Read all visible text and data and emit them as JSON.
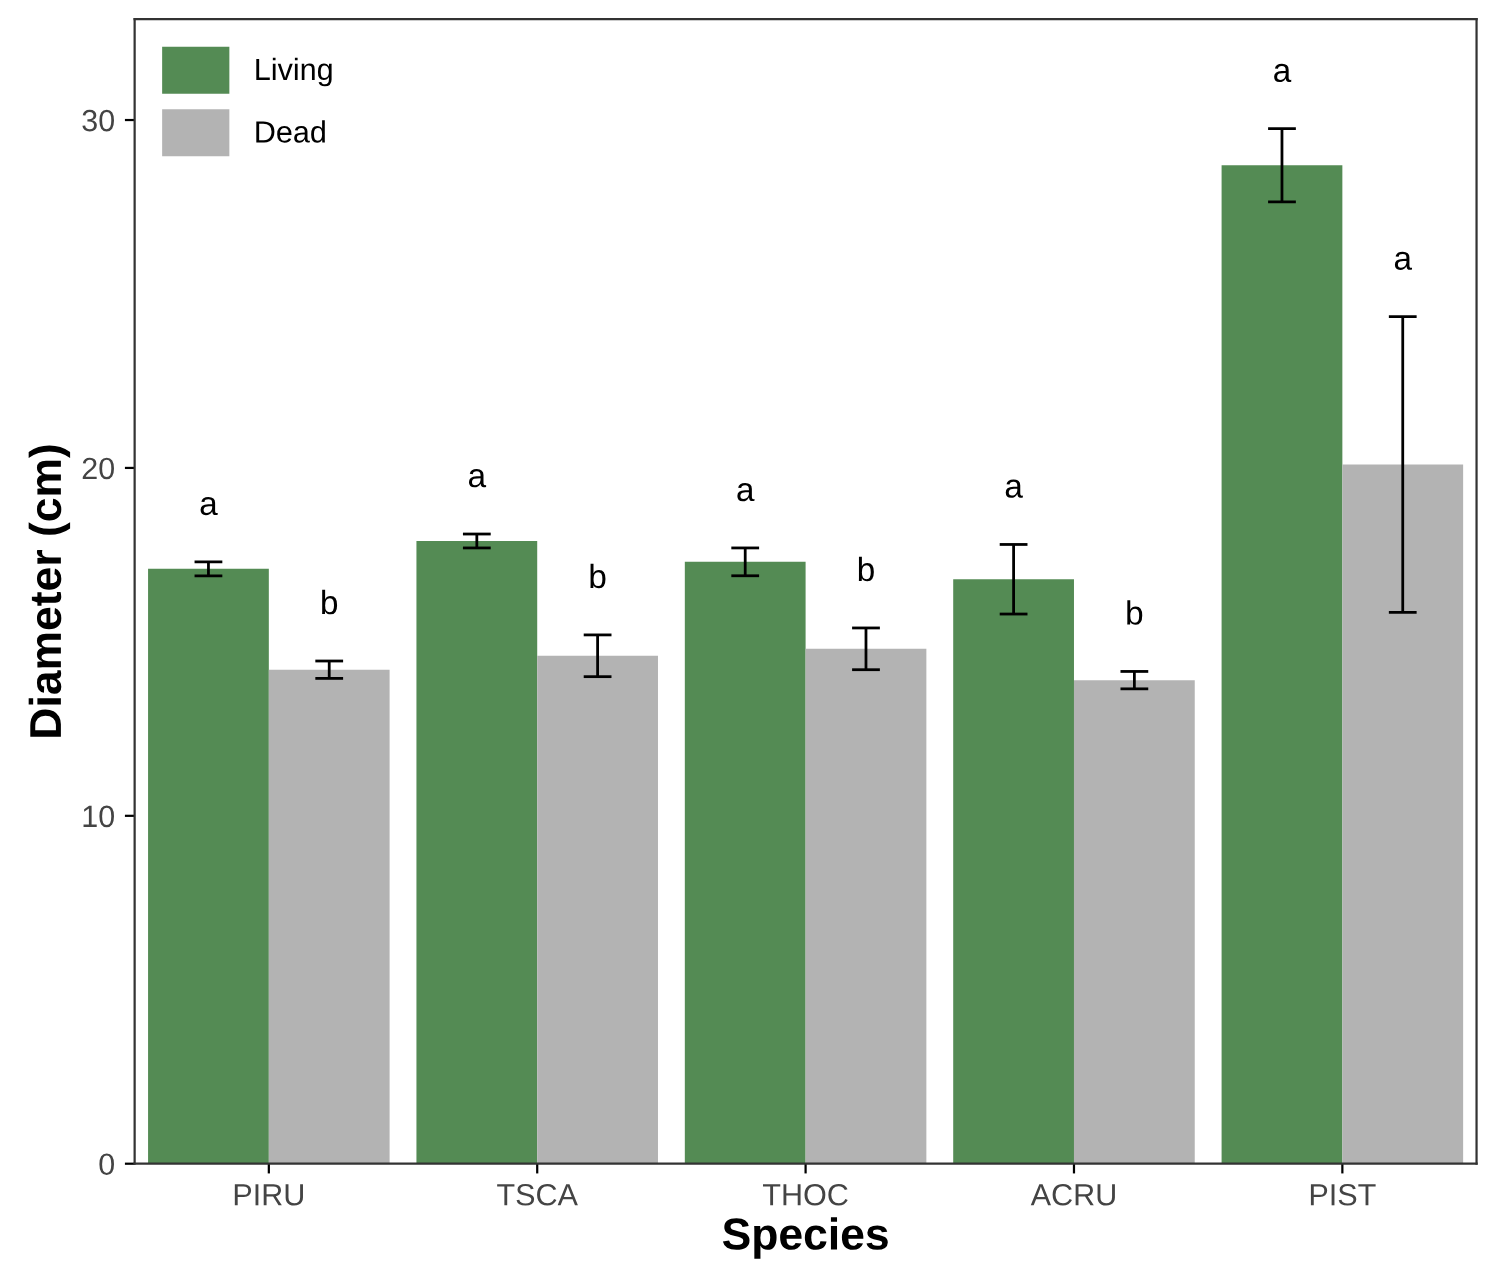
{
  "chart_data": {
    "type": "bar",
    "xlabel": "Species",
    "ylabel": "Diameter (cm)",
    "categories": [
      "PIRU",
      "TSCA",
      "THOC",
      "ACRU",
      "PIST"
    ],
    "series": [
      {
        "name": "Living",
        "color": "#548b54",
        "values": [
          17.1,
          17.9,
          17.3,
          16.8,
          28.7
        ],
        "errors": [
          0.2,
          0.2,
          0.4,
          1.0,
          1.05
        ]
      },
      {
        "name": "Dead",
        "color": "#b3b3b3",
        "values": [
          14.2,
          14.6,
          14.8,
          13.9,
          20.1
        ],
        "errors": [
          0.25,
          0.6,
          0.6,
          0.25,
          4.25
        ]
      }
    ],
    "annotations": [
      "a",
      "a",
      "a",
      "a",
      "a",
      "b",
      "b",
      "b",
      "b",
      "a"
    ],
    "ylim": [
      0,
      32.9
    ],
    "yticks": [
      0,
      10,
      20,
      30
    ],
    "grid": false,
    "legend": "top left"
  }
}
